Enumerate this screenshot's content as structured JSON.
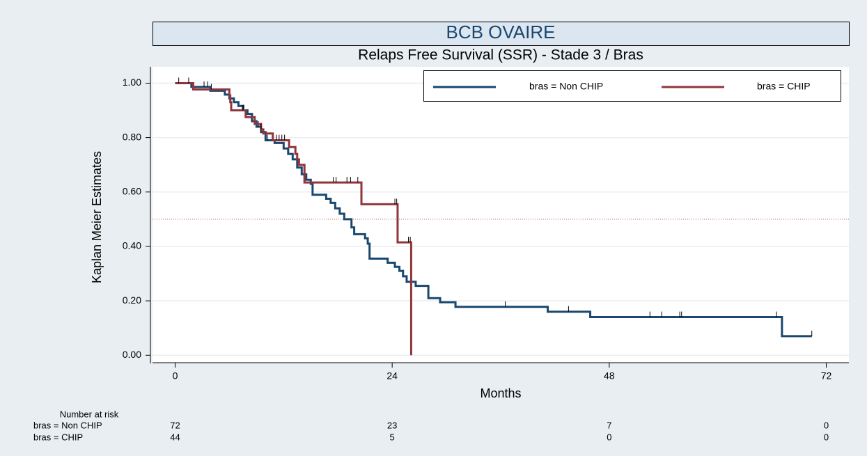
{
  "chart_data": {
    "type": "kaplan-meier",
    "title": "BCB OVAIRE",
    "subtitle": "Relaps Free Survival (SSR) - Stade 3 / Bras",
    "x_label": "Months",
    "y_label": "Kaplan Meier Estimates",
    "xlim": [
      -2.5,
      74.5
    ],
    "ylim": [
      -0.03,
      1.06
    ],
    "xticks": [
      0,
      24,
      48,
      72
    ],
    "yticks": [
      {
        "value": 0,
        "label": "0.00"
      },
      {
        "value": 0.2,
        "label": "0.20"
      },
      {
        "value": 0.4,
        "label": "0.40"
      },
      {
        "value": 0.6,
        "label": "0.60"
      },
      {
        "value": 0.8,
        "label": "0.80"
      },
      {
        "value": 1,
        "label": "1.00"
      }
    ],
    "grid": true,
    "refline": 0.5,
    "refline_color": "#c0504d",
    "legend": "top-right",
    "series": [
      {
        "name": "bras = Non CHIP",
        "color": "#1a476f",
        "x": [
          0,
          1.8,
          3.9,
          5.5,
          6,
          6.5,
          7,
          7.5,
          8,
          8.5,
          9,
          9.5,
          10,
          11,
          12,
          12.5,
          13,
          13.5,
          14,
          14.5,
          15,
          15.2,
          16.7,
          17.2,
          17.7,
          18.2,
          18.7,
          19.5,
          19.8,
          21,
          21.3,
          21.5,
          23.5,
          24.3,
          24.8,
          25.2,
          25.6,
          26.6,
          28,
          29.3,
          31,
          41.2,
          45.9,
          67.1,
          70.4
        ],
        "values": [
          1,
          0.986,
          0.972,
          0.958,
          0.944,
          0.93,
          0.916,
          0.9,
          0.887,
          0.86,
          0.84,
          0.82,
          0.79,
          0.78,
          0.76,
          0.74,
          0.72,
          0.69,
          0.665,
          0.645,
          0.63,
          0.59,
          0.575,
          0.56,
          0.54,
          0.52,
          0.5,
          0.47,
          0.445,
          0.43,
          0.41,
          0.355,
          0.34,
          0.325,
          0.31,
          0.29,
          0.27,
          0.255,
          0.21,
          0.195,
          0.178,
          0.16,
          0.14,
          0.07,
          0.07
        ],
        "censored": [
          3.2,
          3.6,
          7.6,
          9.2,
          10.2,
          36.5,
          43.5,
          52.5,
          53.8,
          55.8,
          56,
          66.5,
          70.4
        ]
      },
      {
        "name": "bras = CHIP",
        "color": "#90353b",
        "x": [
          0,
          2,
          6,
          6.1,
          6.2,
          7.8,
          8.8,
          9.5,
          9.75,
          10.8,
          12.6,
          13.3,
          13.5,
          13.7,
          14.3,
          20.6,
          24.6,
          26.1
        ],
        "values": [
          1,
          0.977,
          0.955,
          0.93,
          0.9,
          0.875,
          0.85,
          0.83,
          0.815,
          0.79,
          0.765,
          0.74,
          0.72,
          0.7,
          0.635,
          0.555,
          0.415,
          0
        ],
        "censored": [
          0.4,
          1.5,
          4,
          7.5,
          9.5,
          11.2,
          11.5,
          11.8,
          12.1,
          17.5,
          17.8,
          19,
          19.4,
          20.2,
          24.3,
          24.5,
          25.8,
          26
        ]
      }
    ]
  },
  "risk_table": {
    "title": "Number at risk",
    "rows": [
      [
        72,
        23,
        7,
        0
      ],
      [
        44,
        5,
        0,
        0
      ]
    ]
  }
}
